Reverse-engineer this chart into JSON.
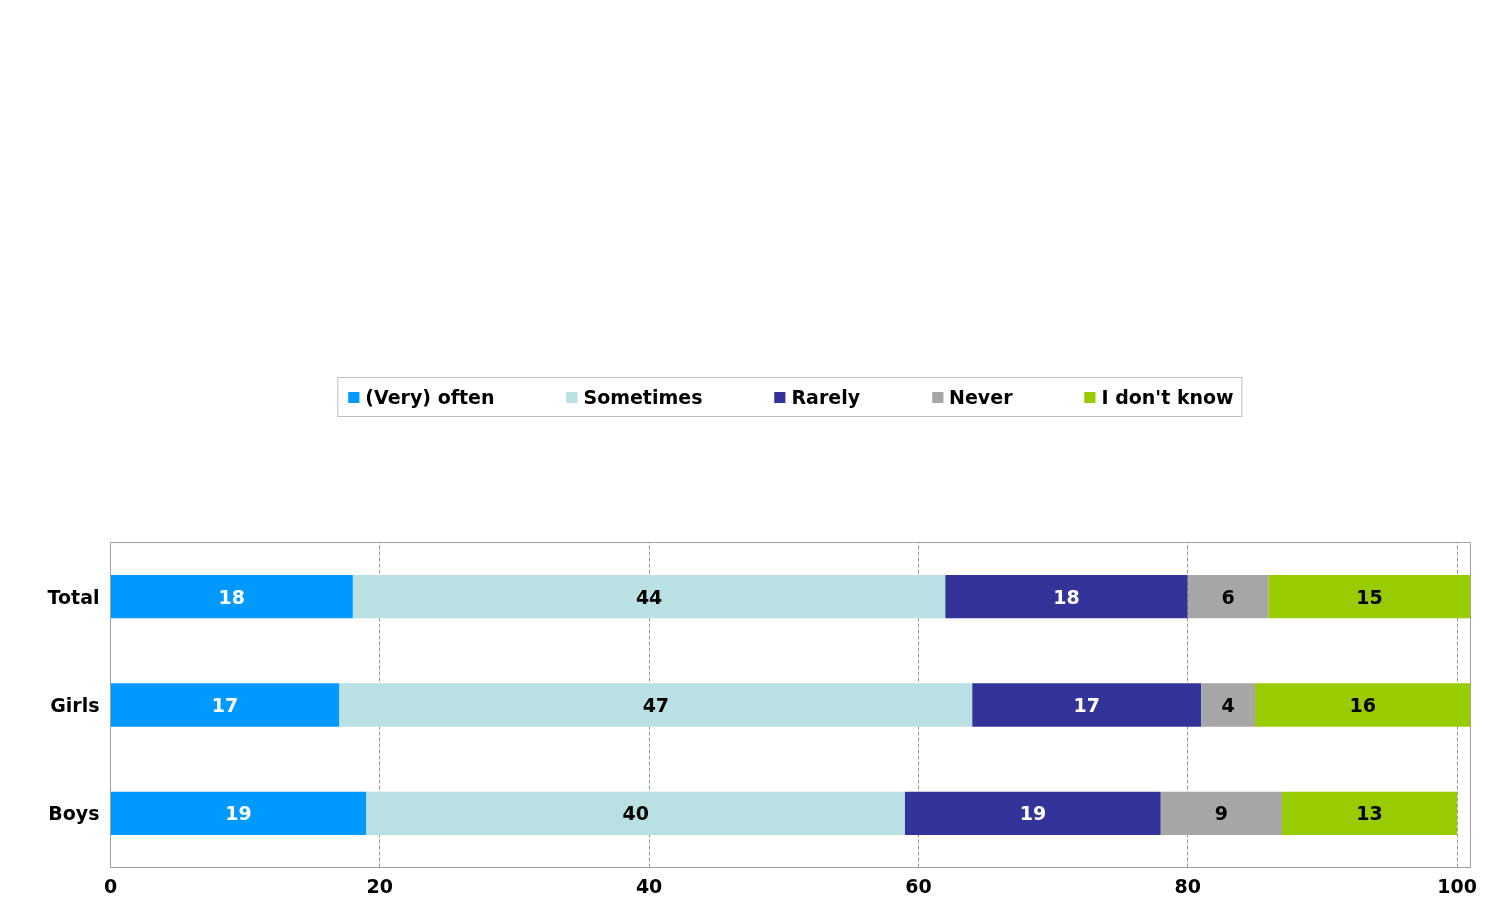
{
  "chart_data": {
    "type": "bar",
    "orientation": "horizontal",
    "stacked": true,
    "categories": [
      "Total",
      "Girls",
      "Boys"
    ],
    "series": [
      {
        "name": "(Very) often",
        "color": "#0099ff",
        "values": [
          18,
          17,
          19
        ]
      },
      {
        "name": "Sometimes",
        "color": "#b9e0e3",
        "values": [
          44,
          47,
          40
        ]
      },
      {
        "name": "Rarely",
        "color": "#333399",
        "values": [
          18,
          17,
          19
        ]
      },
      {
        "name": "Never",
        "color": "#a6a6a6",
        "values": [
          6,
          4,
          9
        ]
      },
      {
        "name": "I don't know",
        "color": "#99cc00",
        "values": [
          15,
          16,
          13
        ]
      }
    ],
    "xlim": [
      0,
      101
    ],
    "xticks": [
      0,
      20,
      40,
      60,
      80,
      100
    ],
    "grid": "x",
    "legend": "top",
    "data_labels": true
  }
}
